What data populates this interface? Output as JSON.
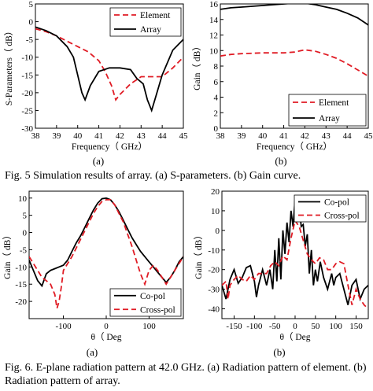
{
  "figure5_caption": "Fig. 5    Simulation results of array. (a) S-parameters. (b) Gain curve.",
  "figure6_caption": "Fig. 6.   E-plane radiation pattern at 42.0 GHz. (a) Radiation pattern of element. (b) Radiation pattern of array.",
  "chart_data": [
    {
      "id": "s-params",
      "type": "line",
      "panel_label": "(a)",
      "xlabel": "Frequency（ GHz）",
      "ylabel": "S-Parameters（ dB）",
      "xlim": [
        38,
        45
      ],
      "ylim": [
        -30,
        5
      ],
      "xticks": [
        38,
        39,
        40,
        41,
        42,
        43,
        44,
        45
      ],
      "yticks": [
        5,
        0,
        -5,
        -10,
        -15,
        -20,
        -25,
        -30
      ],
      "legend_position": "top-right",
      "series": [
        {
          "name": "Element",
          "color": "#e01b24",
          "style": "dashed",
          "x": [
            38,
            38.5,
            39,
            39.5,
            40,
            40.5,
            41,
            41.3,
            41.6,
            41.8,
            42,
            42.5,
            43,
            43.5,
            44,
            44.5,
            45
          ],
          "y": [
            -2,
            -2.8,
            -4,
            -5.5,
            -7,
            -8.5,
            -11,
            -14,
            -18,
            -22,
            -20.5,
            -17.5,
            -15.5,
            -15.5,
            -15.5,
            -13,
            -10
          ]
        },
        {
          "name": "Array",
          "color": "#000000",
          "style": "solid",
          "x": [
            38,
            38.5,
            39,
            39.5,
            39.8,
            40,
            40.2,
            40.35,
            40.6,
            41,
            41.5,
            42,
            42.5,
            42.8,
            43.1,
            43.3,
            43.5,
            43.7,
            44,
            44.5,
            45
          ],
          "y": [
            -1.5,
            -2.5,
            -4,
            -7,
            -10,
            -15,
            -20,
            -22,
            -18,
            -14,
            -13,
            -13,
            -13.5,
            -16,
            -17.5,
            -22,
            -25,
            -21,
            -15,
            -8,
            -5
          ]
        }
      ]
    },
    {
      "id": "gain-curve",
      "type": "line",
      "panel_label": "(b)",
      "xlabel": "Frequency（ GHz）",
      "ylabel": "Gain（ dB）",
      "xlim": [
        38,
        45
      ],
      "ylim": [
        0,
        16
      ],
      "xticks": [
        38,
        39,
        40,
        41,
        42,
        43,
        44,
        45
      ],
      "yticks": [
        0,
        2,
        4,
        6,
        8,
        10,
        12,
        14,
        16
      ],
      "legend_position": "bottom-right",
      "series": [
        {
          "name": "Element",
          "color": "#e01b24",
          "style": "dashed",
          "x": [
            38,
            38.5,
            39,
            40,
            41,
            41.5,
            42,
            42.5,
            43,
            43.5,
            44,
            44.5,
            45
          ],
          "y": [
            9.3,
            9.5,
            9.6,
            9.7,
            9.7,
            9.8,
            10.1,
            9.9,
            9.5,
            9.0,
            8.3,
            7.5,
            6.7
          ]
        },
        {
          "name": "Array",
          "color": "#000000",
          "style": "solid",
          "x": [
            38,
            38.5,
            39,
            40,
            41,
            41.5,
            42,
            42.5,
            43,
            43.5,
            44,
            44.5,
            45
          ],
          "y": [
            15.3,
            15.5,
            15.6,
            15.8,
            16.0,
            16.1,
            16.1,
            15.9,
            15.6,
            15.3,
            14.8,
            14.2,
            13.3
          ]
        }
      ]
    },
    {
      "id": "element-pattern",
      "type": "line",
      "panel_label": "(a)",
      "xlabel": "θ（ Deg",
      "ylabel": "Gain（ dB）",
      "xlim": [
        -180,
        180
      ],
      "ylim": [
        -25,
        12
      ],
      "xticks": [
        -100,
        0,
        100
      ],
      "yticks": [
        10,
        5,
        0,
        -5,
        -10,
        -15,
        -20
      ],
      "legend_position": "bottom-right",
      "series": [
        {
          "name": "Co-pol",
          "color": "#000000",
          "style": "solid",
          "x": [
            -180,
            -170,
            -160,
            -150,
            -140,
            -130,
            -120,
            -110,
            -100,
            -90,
            -80,
            -70,
            -60,
            -50,
            -40,
            -30,
            -20,
            -10,
            0,
            10,
            20,
            30,
            40,
            50,
            60,
            70,
            80,
            90,
            100,
            110,
            120,
            130,
            140,
            150,
            160,
            170,
            180
          ],
          "y": [
            -8,
            -11,
            -14,
            -15.5,
            -12,
            -11,
            -10.5,
            -10,
            -9.5,
            -8,
            -5.5,
            -3,
            -1,
            1.5,
            4,
            6.5,
            8.5,
            9.8,
            10,
            9.5,
            8,
            6,
            3.5,
            1,
            -1.5,
            -3.5,
            -5.5,
            -7,
            -8.5,
            -10,
            -11.5,
            -13,
            -14.5,
            -13,
            -11,
            -8.5,
            -7
          ]
        },
        {
          "name": "Cross-pol",
          "color": "#e01b24",
          "style": "dashed",
          "x": [
            -180,
            -170,
            -160,
            -150,
            -140,
            -130,
            -120,
            -115,
            -110,
            -105,
            -100,
            -90,
            -80,
            -70,
            -60,
            -50,
            -40,
            -30,
            -20,
            -10,
            0,
            10,
            20,
            30,
            40,
            50,
            60,
            70,
            80,
            90,
            100,
            110,
            120,
            130,
            140,
            150,
            160,
            170,
            180
          ],
          "y": [
            -7,
            -9,
            -11,
            -13,
            -14,
            -15,
            -18,
            -22,
            -20,
            -16,
            -11,
            -9,
            -7,
            -4.5,
            -2,
            0.5,
            3,
            5.5,
            7.5,
            9,
            9.5,
            9.5,
            8,
            5.5,
            3,
            -0.5,
            -4,
            -8,
            -12,
            -15,
            -11,
            -9.5,
            -11,
            -13,
            -15,
            -13,
            -11,
            -9,
            -7
          ]
        }
      ]
    },
    {
      "id": "array-pattern",
      "type": "line",
      "panel_label": "(b)",
      "xlabel": "θ（ Deg",
      "ylabel": "Gain（ dB）",
      "xlim": [
        -180,
        180
      ],
      "ylim": [
        -45,
        20
      ],
      "xticks": [
        -150,
        -100,
        -50,
        0,
        50,
        100,
        150
      ],
      "yticks": [
        20,
        10,
        0,
        -10,
        -20,
        -30,
        -40
      ],
      "legend_position": "top-right",
      "series": [
        {
          "name": "Co-pol",
          "color": "#000000",
          "style": "solid",
          "x": [
            -180,
            -170,
            -160,
            -150,
            -140,
            -130,
            -120,
            -110,
            -100,
            -95,
            -90,
            -80,
            -70,
            -62,
            -55,
            -50,
            -45,
            -40,
            -35,
            -30,
            -25,
            -20,
            -15,
            -10,
            -5,
            0,
            5,
            10,
            15,
            20,
            25,
            30,
            35,
            40,
            45,
            50,
            55,
            62,
            70,
            80,
            90,
            95,
            100,
            110,
            120,
            130,
            140,
            150,
            160,
            170,
            180
          ],
          "y": [
            -28,
            -35,
            -25,
            -20,
            -27,
            -24,
            -19,
            -18,
            -26,
            -34,
            -28,
            -20,
            -28,
            -20,
            -30,
            -10,
            -26,
            -4,
            -25,
            0,
            -12,
            4,
            -6,
            10,
            2,
            16,
            8,
            12,
            2,
            3,
            -8,
            -2,
            -22,
            -10,
            -28,
            -20,
            -26,
            -16,
            -24,
            -30,
            -22,
            -28,
            -24,
            -22,
            -30,
            -38,
            -28,
            -25,
            -35,
            -30,
            -28
          ]
        },
        {
          "name": "Cross-pol",
          "color": "#e01b24",
          "style": "dashed",
          "x": [
            -180,
            -170,
            -165,
            -160,
            -150,
            -140,
            -130,
            -120,
            -110,
            -100,
            -90,
            -80,
            -70,
            -60,
            -50,
            -40,
            -30,
            -20,
            -10,
            0,
            10,
            20,
            30,
            40,
            50,
            60,
            70,
            80,
            90,
            100,
            110,
            120,
            130,
            140,
            150,
            160,
            170,
            180
          ],
          "y": [
            -28,
            -26,
            -35,
            -28,
            -25,
            -23,
            -25,
            -26,
            -23,
            -25,
            -22,
            -22,
            -22,
            -18,
            -16,
            -18,
            -13,
            -15,
            -4,
            5,
            2,
            -5,
            -12,
            -15,
            -17,
            -14,
            -15,
            -20,
            -20,
            -17,
            -16,
            -17,
            -28,
            -38,
            -30,
            -35,
            -38,
            -40
          ]
        }
      ]
    }
  ]
}
